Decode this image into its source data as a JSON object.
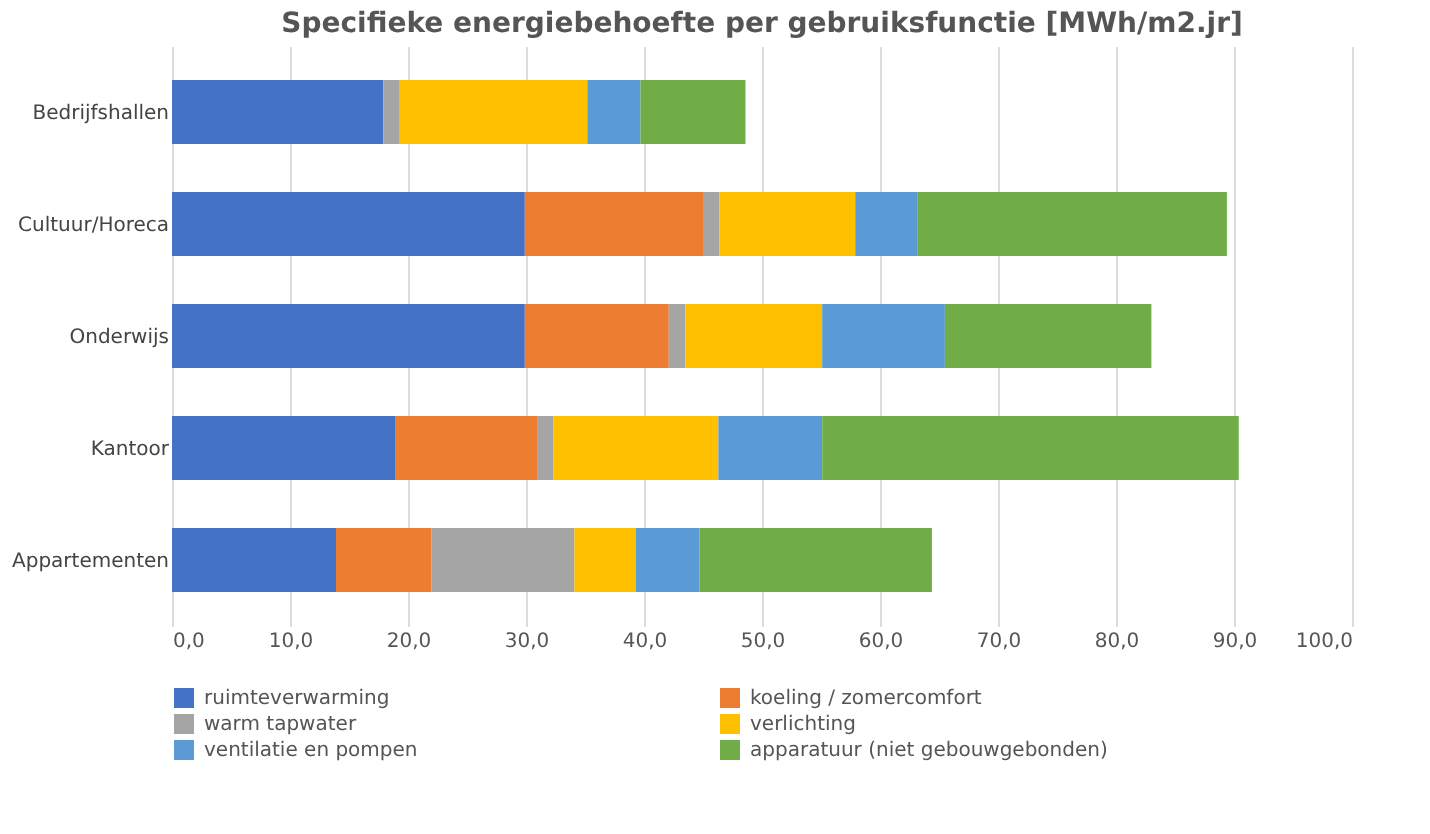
{
  "chart_data": {
    "type": "bar",
    "orientation": "horizontal",
    "stacked": true,
    "title": "Specifieke energiebehoefte per gebruiksfunctie    [MWh/m2.jr]",
    "categories": [
      "Bedrijfshallen",
      "Cultuur/Horeca",
      "Onderwijs",
      "Kantoor",
      "Appartementen"
    ],
    "series": [
      {
        "name": "ruimteverwarming",
        "color": "#4472c4",
        "values": [
          17.9,
          29.9,
          29.9,
          18.9,
          13.9
        ]
      },
      {
        "name": "koeling / zomercomfort",
        "color": "#ed7d31",
        "values": [
          0,
          15.1,
          12.2,
          12.1,
          8.1
        ]
      },
      {
        "name": "warm tapwater",
        "color": "#a5a5a5",
        "values": [
          1.4,
          1.4,
          1.4,
          1.3,
          12.1
        ]
      },
      {
        "name": "verlichting",
        "color": "#ffc000",
        "values": [
          15.9,
          11.5,
          11.6,
          14.0,
          5.2
        ]
      },
      {
        "name": "ventilatie en pompen",
        "color": "#5b9bd5",
        "values": [
          4.5,
          5.3,
          10.4,
          8.8,
          5.4
        ]
      },
      {
        "name": "apparatuur (niet gebouwgebonden)",
        "color": "#70ad47",
        "values": [
          8.9,
          26.2,
          17.5,
          35.3,
          19.7
        ]
      }
    ],
    "xlim": [
      0,
      100
    ],
    "xticks": [
      {
        "value": 0,
        "label": "0,0"
      },
      {
        "value": 10,
        "label": "10,0"
      },
      {
        "value": 20,
        "label": "20,0"
      },
      {
        "value": 30,
        "label": "30,0"
      },
      {
        "value": 40,
        "label": "40,0"
      },
      {
        "value": 50,
        "label": "50,0"
      },
      {
        "value": 60,
        "label": "60,0"
      },
      {
        "value": 70,
        "label": "70,0"
      },
      {
        "value": 80,
        "label": "80,0"
      },
      {
        "value": 90,
        "label": "90,0"
      },
      {
        "value": 100,
        "label": "100,0"
      }
    ],
    "grid": "x",
    "legend": "bottom"
  }
}
